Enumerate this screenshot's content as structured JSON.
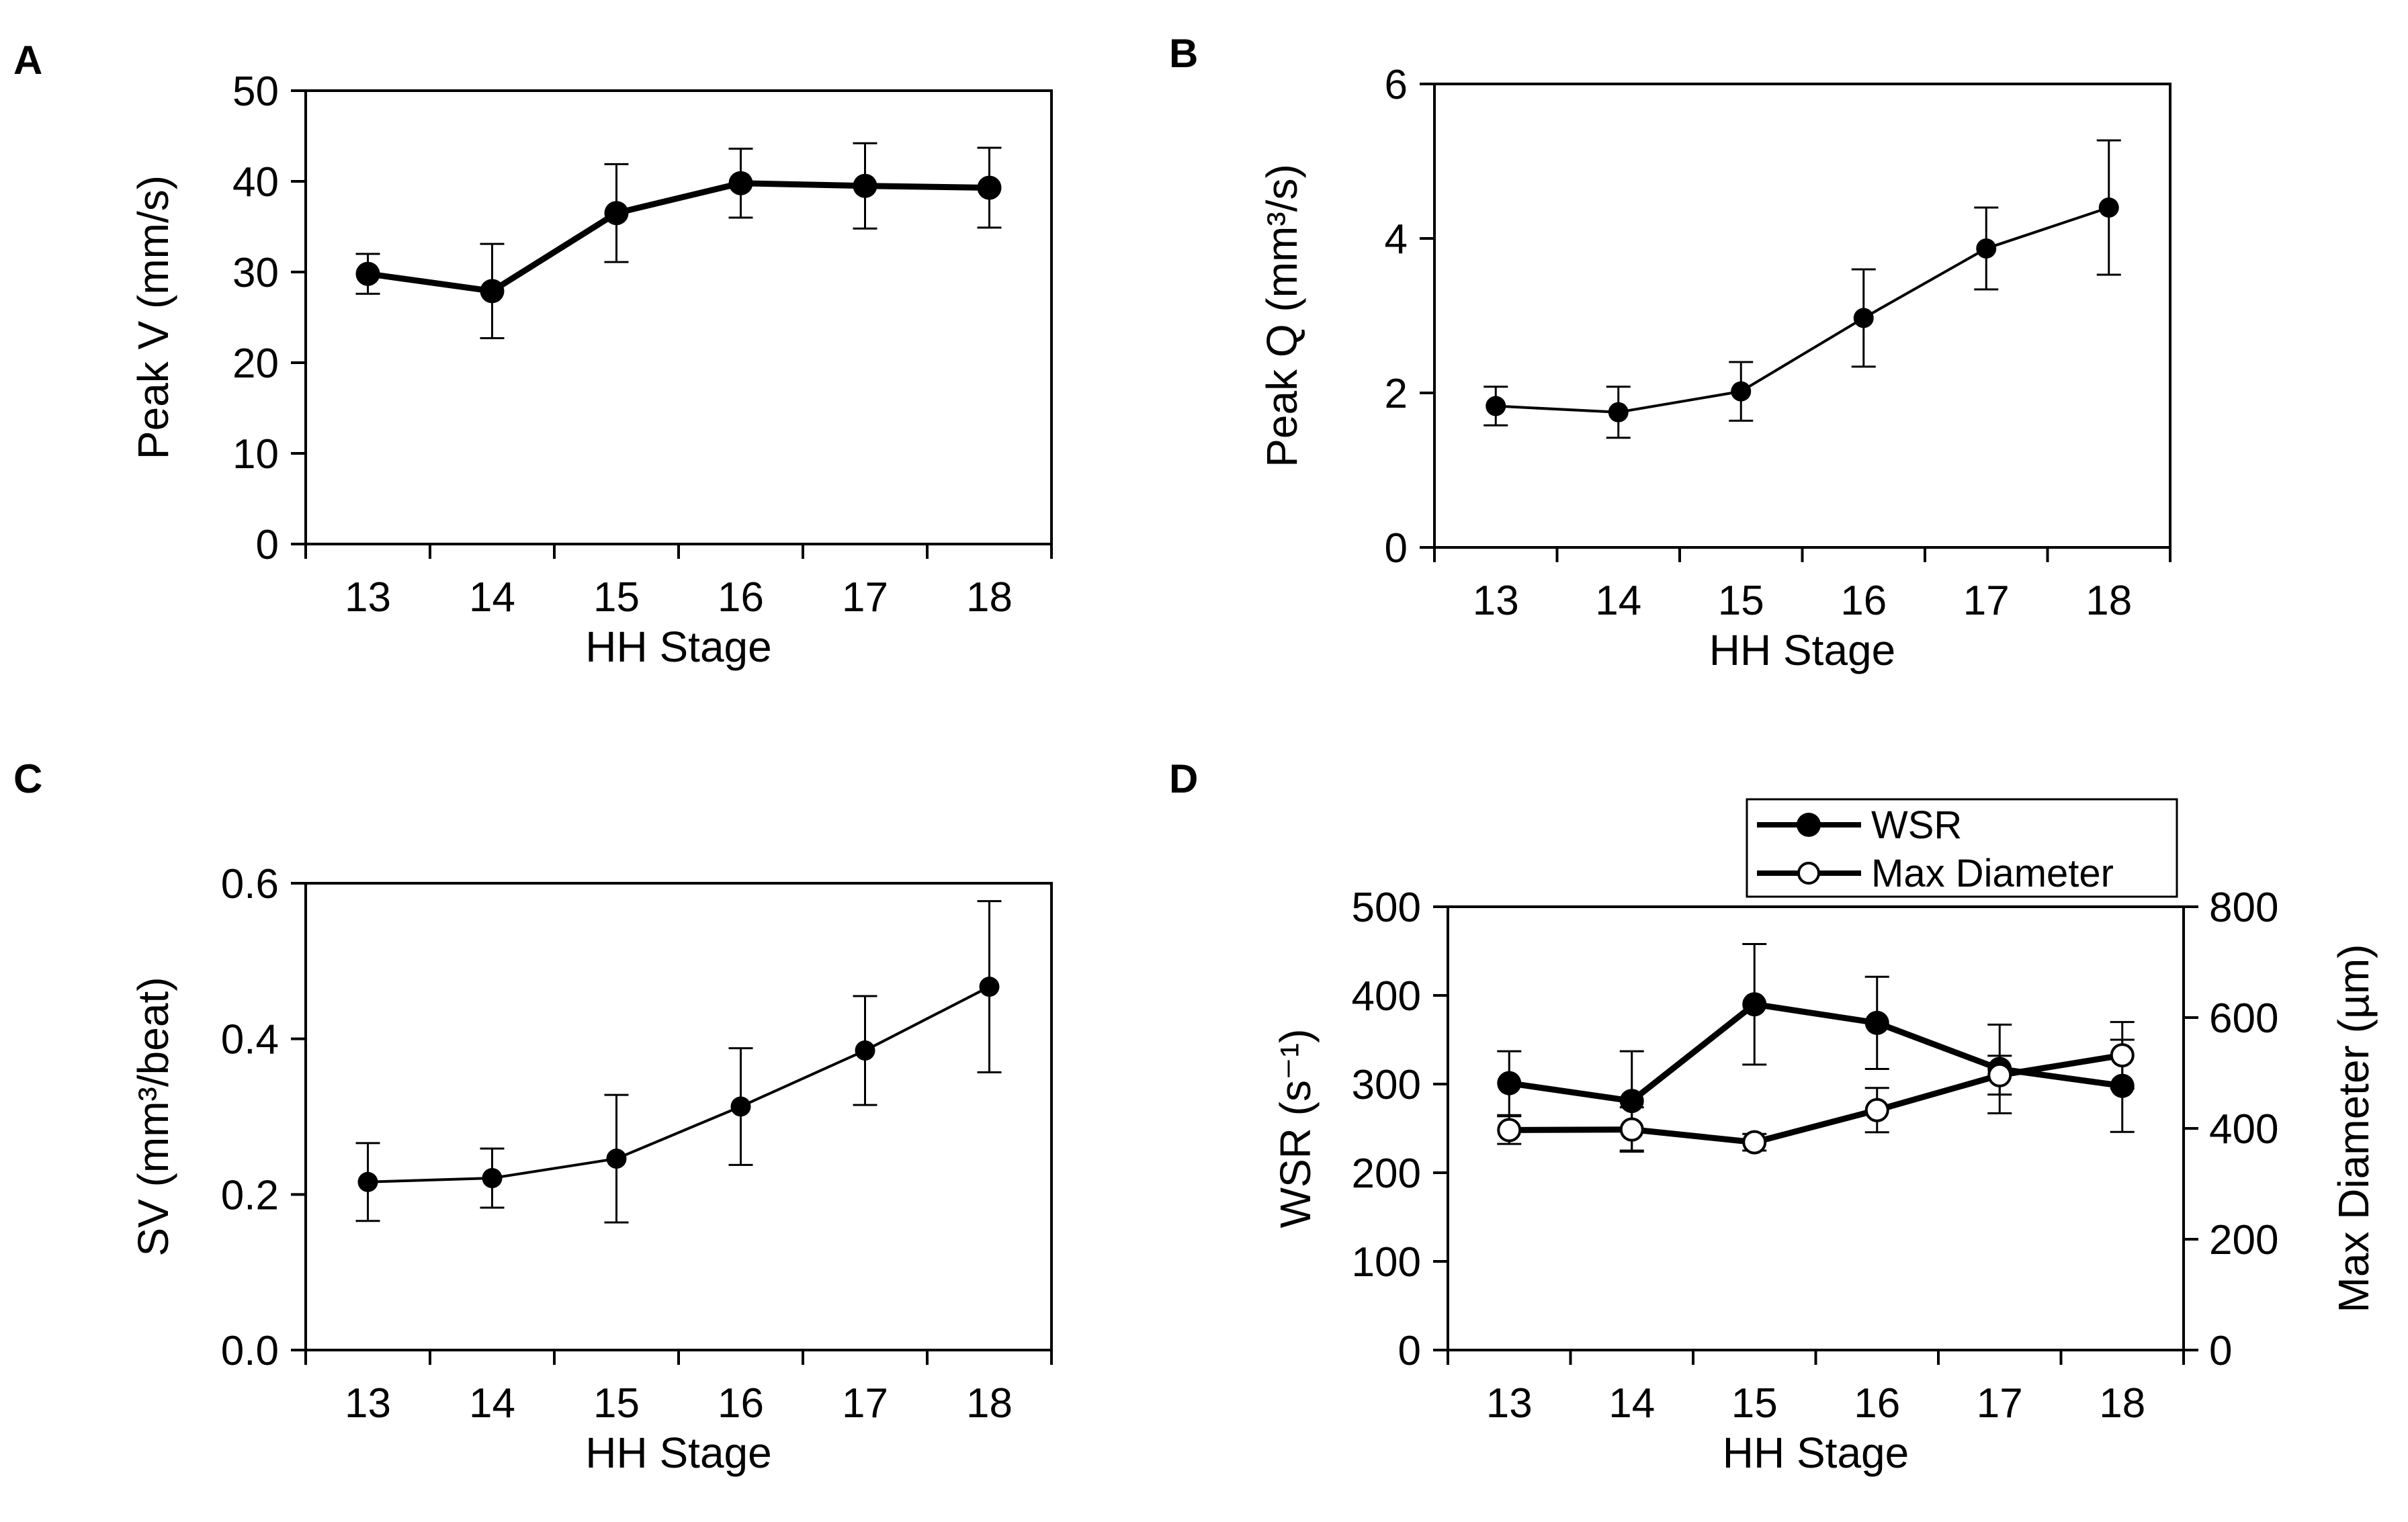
{
  "chart_data": [
    {
      "id": "A",
      "panel_label": "A",
      "type": "line",
      "title": "",
      "xlabel": "HH Stage",
      "ylabel": "Peak V (mm/s)",
      "categories": [
        "13",
        "14",
        "15",
        "16",
        "17",
        "18"
      ],
      "ylim": [
        0,
        50
      ],
      "yticks": [
        "0",
        "10",
        "20",
        "30",
        "40",
        "50"
      ],
      "grid": false,
      "series": [
        {
          "name": "Peak V",
          "marker": "filled",
          "line": "thick",
          "values": [
            29.8,
            27.9,
            36.5,
            39.8,
            39.5,
            39.3
          ],
          "errors": [
            2.2,
            5.2,
            5.4,
            3.8,
            4.7,
            4.4
          ]
        }
      ]
    },
    {
      "id": "B",
      "panel_label": "B",
      "type": "line",
      "title": "",
      "xlabel": "HH Stage",
      "ylabel": "Peak Q (mm³/s)",
      "categories": [
        "13",
        "14",
        "15",
        "16",
        "17",
        "18"
      ],
      "ylim": [
        0,
        6
      ],
      "yticks": [
        "0",
        "2",
        "4",
        "6"
      ],
      "grid": false,
      "series": [
        {
          "name": "Peak Q",
          "marker": "filled",
          "line": "thin",
          "values": [
            1.83,
            1.75,
            2.02,
            2.97,
            3.87,
            4.4
          ],
          "errors": [
            0.25,
            0.33,
            0.38,
            0.63,
            0.53,
            0.87
          ]
        }
      ]
    },
    {
      "id": "C",
      "panel_label": "C",
      "type": "line",
      "title": "",
      "xlabel": "HH Stage",
      "ylabel": "SV (mm³/beat)",
      "categories": [
        "13",
        "14",
        "15",
        "16",
        "17",
        "18"
      ],
      "ylim": [
        0,
        0.6
      ],
      "yticks": [
        "0.0",
        "0.2",
        "0.4",
        "0.6"
      ],
      "grid": false,
      "series": [
        {
          "name": "SV",
          "marker": "filled",
          "line": "thin",
          "values": [
            0.216,
            0.221,
            0.246,
            0.313,
            0.385,
            0.467
          ],
          "errors": [
            0.05,
            0.038,
            0.082,
            0.075,
            0.07,
            0.11
          ]
        }
      ]
    },
    {
      "id": "D",
      "panel_label": "D",
      "type": "line",
      "title": "",
      "xlabel": "HH Stage",
      "ylabel": "WSR (s⁻¹)",
      "y2label": "Max Diameter (µm)",
      "categories": [
        "13",
        "14",
        "15",
        "16",
        "17",
        "18"
      ],
      "ylim": [
        0,
        500
      ],
      "yticks": [
        "0",
        "100",
        "200",
        "300",
        "400",
        "500"
      ],
      "y2lim": [
        0,
        800
      ],
      "y2ticks": [
        "0",
        "200",
        "400",
        "600",
        "800"
      ],
      "grid": false,
      "legend_position": "top-right",
      "series": [
        {
          "name": "WSR",
          "axis": "left",
          "marker": "filled",
          "line": "thick",
          "values": [
            301,
            281,
            390,
            369,
            317,
            298
          ],
          "errors": [
            36,
            56,
            68,
            52,
            50,
            52
          ]
        },
        {
          "name": "Max Diameter",
          "axis": "right",
          "marker": "open",
          "line": "thick",
          "values": [
            397,
            398,
            375,
            433,
            496,
            532
          ],
          "errors": [
            25,
            40,
            15,
            40,
            35,
            60
          ]
        }
      ]
    }
  ]
}
